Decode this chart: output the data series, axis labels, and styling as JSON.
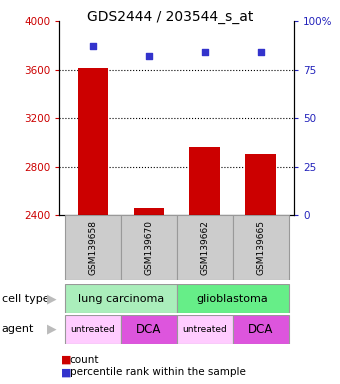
{
  "title": "GDS2444 / 203544_s_at",
  "samples": [
    "GSM139658",
    "GSM139670",
    "GSM139662",
    "GSM139665"
  ],
  "counts": [
    3610,
    2460,
    2960,
    2900
  ],
  "percentile_ranks": [
    87,
    82,
    84,
    84
  ],
  "ylim_left": [
    2400,
    4000
  ],
  "ylim_right": [
    0,
    100
  ],
  "yticks_left": [
    2400,
    2800,
    3200,
    3600,
    4000
  ],
  "yticks_right": [
    0,
    25,
    50,
    75,
    100
  ],
  "yticklabels_right": [
    "0",
    "25",
    "50",
    "75",
    "100%"
  ],
  "bar_color": "#cc0000",
  "dot_color": "#3333cc",
  "cell_types": [
    [
      "lung carcinoma",
      2
    ],
    [
      "glioblastoma",
      2
    ]
  ],
  "cell_type_colors": [
    "#aaeebb",
    "#66ee88"
  ],
  "agents": [
    "untreated",
    "DCA",
    "untreated",
    "DCA"
  ],
  "agent_colors_light": "#ffccff",
  "agent_colors_dark": "#dd55dd",
  "bg_color": "#ffffff",
  "left_axis_color": "#cc0000",
  "right_axis_color": "#2222bb",
  "sample_box_color": "#cccccc",
  "sample_box_edge": "#999999"
}
